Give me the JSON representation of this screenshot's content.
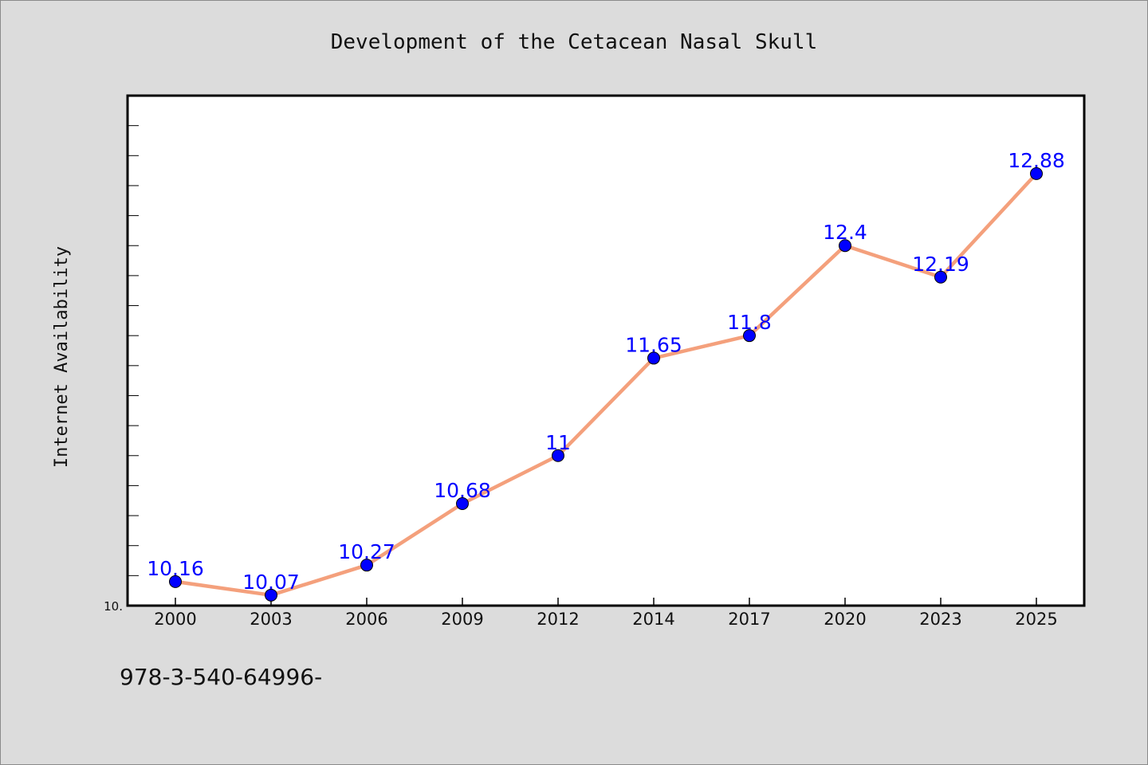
{
  "chart_data": {
    "type": "line",
    "title": "Development of the Cetacean Nasal Skull",
    "xlabel": "",
    "ylabel": "Internet Availability",
    "categories": [
      "2000",
      "2003",
      "2006",
      "2009",
      "2012",
      "2014",
      "2017",
      "2020",
      "2023",
      "2025"
    ],
    "series": [
      {
        "values": [
          10.16,
          10.07,
          10.27,
          10.68,
          11,
          11.65,
          11.8,
          12.4,
          12.19,
          12.88
        ],
        "labels": [
          "10.16",
          "10.07",
          "10.27",
          "10.68",
          "11",
          "11.65",
          "11.8",
          "12.4",
          "12.19",
          "12.88"
        ]
      }
    ],
    "y_tick_label": "10.",
    "ylim": [
      10.0,
      13.4
    ],
    "grid": false,
    "colors": {
      "line": "#f4a07c",
      "marker": "#0000ff",
      "label": "#0000ff",
      "background": "#dcdcdc",
      "plot_background": "#ffffff"
    }
  },
  "footnote": "978-3-540-64996-"
}
